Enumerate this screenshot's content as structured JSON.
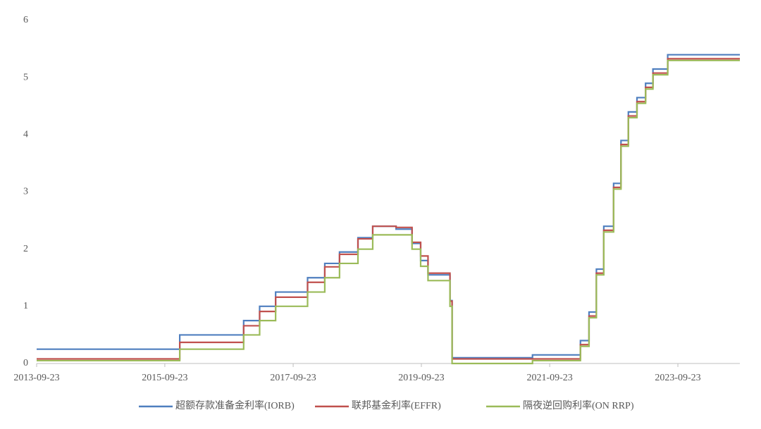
{
  "chart_data": {
    "type": "line",
    "x": [
      "2013-09-23",
      "2015-12-17",
      "2015-12-17",
      "2016-12-15",
      "2016-12-15",
      "2017-03-16",
      "2017-03-16",
      "2017-06-15",
      "2017-06-15",
      "2017-12-14",
      "2017-12-14",
      "2018-03-22",
      "2018-03-22",
      "2018-06-14",
      "2018-06-14",
      "2018-09-27",
      "2018-09-27",
      "2018-12-20",
      "2018-12-20",
      "2019-05-02",
      "2019-05-02",
      "2019-08-01",
      "2019-08-01",
      "2019-09-19",
      "2019-09-19",
      "2019-10-31",
      "2019-10-31",
      "2020-03-04",
      "2020-03-04",
      "2020-03-16",
      "2020-03-16",
      "2021-06-17",
      "2021-06-17",
      "2022-03-17",
      "2022-03-17",
      "2022-05-05",
      "2022-05-05",
      "2022-06-16",
      "2022-06-16",
      "2022-07-28",
      "2022-07-28",
      "2022-09-22",
      "2022-09-22",
      "2022-11-03",
      "2022-11-03",
      "2022-12-15",
      "2022-12-15",
      "2023-02-02",
      "2023-02-02",
      "2023-03-23",
      "2023-03-23",
      "2023-05-04",
      "2023-05-04",
      "2023-07-27",
      "2023-07-27",
      "2024-09-10"
    ],
    "series": [
      {
        "name": "超额存款准备金利率(IORB)",
        "color": "#4f7fbf",
        "values": [
          0.25,
          0.25,
          0.5,
          0.5,
          0.75,
          0.75,
          1.0,
          1.0,
          1.25,
          1.25,
          1.5,
          1.5,
          1.75,
          1.75,
          1.95,
          1.95,
          2.2,
          2.2,
          2.4,
          2.4,
          2.35,
          2.35,
          2.1,
          2.1,
          1.8,
          1.8,
          1.55,
          1.55,
          1.1,
          1.1,
          0.1,
          0.1,
          0.15,
          0.15,
          0.4,
          0.4,
          0.9,
          0.9,
          1.65,
          1.65,
          2.4,
          2.4,
          3.15,
          3.15,
          3.9,
          3.9,
          4.4,
          4.4,
          4.65,
          4.65,
          4.9,
          4.9,
          5.15,
          5.15,
          5.4,
          5.4
        ]
      },
      {
        "name": "联邦基金利率(EFFR)",
        "color": "#c0504d",
        "values": [
          0.08,
          0.08,
          0.37,
          0.37,
          0.66,
          0.66,
          0.91,
          0.91,
          1.16,
          1.16,
          1.42,
          1.42,
          1.69,
          1.69,
          1.91,
          1.91,
          2.18,
          2.18,
          2.4,
          2.4,
          2.38,
          2.38,
          2.12,
          2.12,
          1.88,
          1.88,
          1.58,
          1.58,
          1.09,
          1.09,
          0.08,
          0.08,
          0.08,
          0.08,
          0.33,
          0.33,
          0.83,
          0.83,
          1.58,
          1.58,
          2.33,
          2.33,
          3.08,
          3.08,
          3.83,
          3.83,
          4.33,
          4.33,
          4.58,
          4.58,
          4.83,
          4.83,
          5.08,
          5.08,
          5.33,
          5.33
        ]
      },
      {
        "name": "隔夜逆回购利率(ON RRP)",
        "color": "#9bbb59",
        "values": [
          0.05,
          0.05,
          0.25,
          0.25,
          0.5,
          0.5,
          0.75,
          0.75,
          1.0,
          1.0,
          1.25,
          1.25,
          1.5,
          1.5,
          1.75,
          1.75,
          2.0,
          2.0,
          2.25,
          2.25,
          2.25,
          2.25,
          2.0,
          2.0,
          1.7,
          1.7,
          1.45,
          1.45,
          1.0,
          1.0,
          0.0,
          0.0,
          0.05,
          0.05,
          0.3,
          0.3,
          0.8,
          0.8,
          1.55,
          1.55,
          2.3,
          2.3,
          3.05,
          3.05,
          3.8,
          3.8,
          4.3,
          4.3,
          4.55,
          4.55,
          4.8,
          4.8,
          5.05,
          5.05,
          5.3,
          5.3
        ]
      }
    ],
    "xlim": [
      "2013-09-23",
      "2024-09-10"
    ],
    "xticks": [
      "2013-09-23",
      "2015-09-23",
      "2017-09-23",
      "2019-09-23",
      "2021-09-23",
      "2023-09-23"
    ],
    "ylim": [
      0,
      6
    ],
    "yticks": [
      0,
      1,
      2,
      3,
      4,
      5,
      6
    ],
    "grid": false,
    "legend": "bottom"
  }
}
